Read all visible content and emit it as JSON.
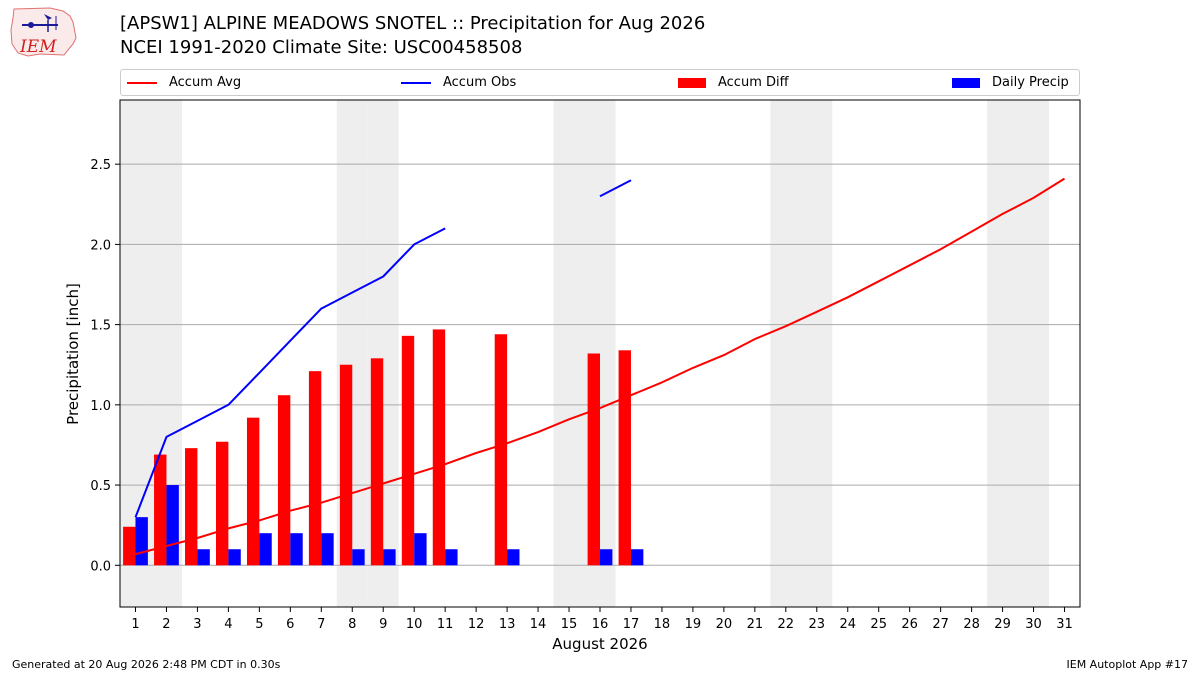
{
  "header": {
    "title_line1": "[APSW1] ALPINE MEADOWS SNOTEL :: Precipitation for Aug 2026",
    "title_line2": "NCEI 1991-2020 Climate Site: USC00458508",
    "logo_text": "IEM"
  },
  "footer": {
    "left": "Generated at 20 Aug 2026 2:48 PM CDT in 0.30s",
    "right": "IEM Autoplot App #17"
  },
  "legend": {
    "accum_avg": "Accum Avg",
    "accum_obs": "Accum Obs",
    "accum_diff": "Accum Diff",
    "daily_precip": "Daily Precip"
  },
  "colors": {
    "accum_avg": "#ff0000",
    "accum_obs": "#0000ff",
    "accum_diff": "#ff0000",
    "daily_precip": "#0000ff",
    "weekend_shade": "#eeeeee",
    "grid": "#aaaaaa"
  },
  "chart_data": {
    "type": "bar",
    "xlabel": "August 2026",
    "ylabel": "Precipitation [inch]",
    "ylim": [
      -0.26,
      2.9
    ],
    "xlim": [
      0.5,
      31.5
    ],
    "yticks": [
      0.0,
      0.5,
      1.0,
      1.5,
      2.0,
      2.5
    ],
    "ytick_labels": [
      "0.0",
      "0.5",
      "1.0",
      "1.5",
      "2.0",
      "2.5"
    ],
    "days": [
      1,
      2,
      3,
      4,
      5,
      6,
      7,
      8,
      9,
      10,
      11,
      12,
      13,
      14,
      15,
      16,
      17,
      18,
      19,
      20,
      21,
      22,
      23,
      24,
      25,
      26,
      27,
      28,
      29,
      30,
      31
    ],
    "grid": "horizontal",
    "legend_position": "top",
    "shaded_weekend_days": [
      1,
      2,
      8,
      9,
      15,
      16,
      22,
      23,
      29,
      30
    ],
    "series": [
      {
        "name": "Accum Avg",
        "kind": "line",
        "x": [
          1,
          2,
          3,
          4,
          5,
          6,
          7,
          8,
          9,
          10,
          11,
          12,
          13,
          14,
          15,
          16,
          17,
          18,
          19,
          20,
          21,
          22,
          23,
          24,
          25,
          26,
          27,
          28,
          29,
          30,
          31
        ],
        "values": [
          0.07,
          0.12,
          0.17,
          0.23,
          0.28,
          0.34,
          0.39,
          0.45,
          0.51,
          0.57,
          0.63,
          0.7,
          0.76,
          0.83,
          0.91,
          0.98,
          1.06,
          1.14,
          1.23,
          1.31,
          1.41,
          1.49,
          1.58,
          1.67,
          1.77,
          1.87,
          1.97,
          2.08,
          2.19,
          2.29,
          2.41
        ]
      },
      {
        "name": "Accum Obs",
        "kind": "line",
        "x": [
          1,
          2,
          3,
          4,
          5,
          6,
          7,
          8,
          9,
          10,
          11,
          12,
          13,
          14,
          15,
          16,
          17
        ],
        "values": [
          0.3,
          0.8,
          0.9,
          1.0,
          1.2,
          1.4,
          1.6,
          1.7,
          1.8,
          2.0,
          2.1,
          null,
          null,
          null,
          null,
          2.3,
          2.4
        ]
      },
      {
        "name": "Accum Diff",
        "kind": "bar",
        "x": [
          1,
          2,
          3,
          4,
          5,
          6,
          7,
          8,
          9,
          10,
          11,
          13,
          16,
          17
        ],
        "values": [
          0.24,
          0.69,
          0.73,
          0.77,
          0.92,
          1.06,
          1.21,
          1.25,
          1.29,
          1.43,
          1.47,
          1.44,
          1.32,
          1.34
        ]
      },
      {
        "name": "Daily Precip",
        "kind": "bar",
        "x": [
          1,
          2,
          3,
          4,
          5,
          6,
          7,
          8,
          9,
          10,
          11,
          13,
          16,
          17
        ],
        "values": [
          0.3,
          0.5,
          0.1,
          0.1,
          0.2,
          0.2,
          0.2,
          0.1,
          0.1,
          0.2,
          0.1,
          0.1,
          0.1,
          0.1
        ]
      }
    ]
  }
}
